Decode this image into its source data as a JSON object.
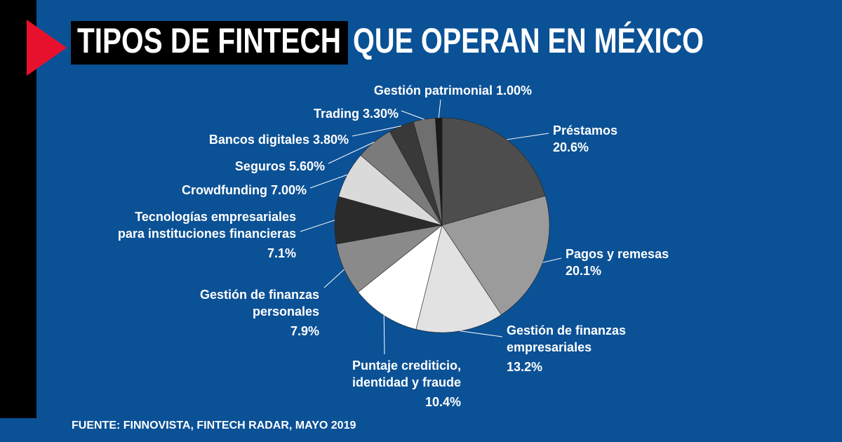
{
  "chart_data": {
    "type": "pie",
    "title": [
      "TIPOS DE FINTECH",
      "QUE OPERAN EN MÉXICO"
    ],
    "source": "FUENTE: FINNOVISTA, FINTECH RADAR, MAYO 2019",
    "categories": [
      [
        "Préstamos"
      ],
      [
        "Pagos y remesas"
      ],
      [
        "Gestión de finanzas",
        "empresariales"
      ],
      [
        "Puntaje crediticio,",
        "identidad y fraude"
      ],
      [
        "Gestión de finanzas",
        "personales"
      ],
      [
        "Tecnologías empresariales",
        "para instituciones financieras"
      ],
      [
        "Crowdfunding"
      ],
      [
        "Seguros"
      ],
      [
        "Bancos digitales"
      ],
      [
        "Trading"
      ],
      [
        "Gestión patrimonial"
      ]
    ],
    "values": [
      20.6,
      20.1,
      13.2,
      10.4,
      7.9,
      7.1,
      7.0,
      5.6,
      3.8,
      3.3,
      1.0
    ],
    "value_labels": [
      "20.6%",
      "20.1%",
      "13.2%",
      "10.4%",
      "7.9%",
      "7.1%",
      "7.00%",
      "5.60%",
      "3.80%",
      "3.30%",
      "1.00%"
    ],
    "colors": [
      "#4d4d4d",
      "#9b9b9b",
      "#e2e2e2",
      "#ffffff",
      "#8a8a8a",
      "#2b2b2b",
      "#dadada",
      "#7b7b7b",
      "#393939",
      "#6f6f6f",
      "#1a1a1a"
    ]
  }
}
